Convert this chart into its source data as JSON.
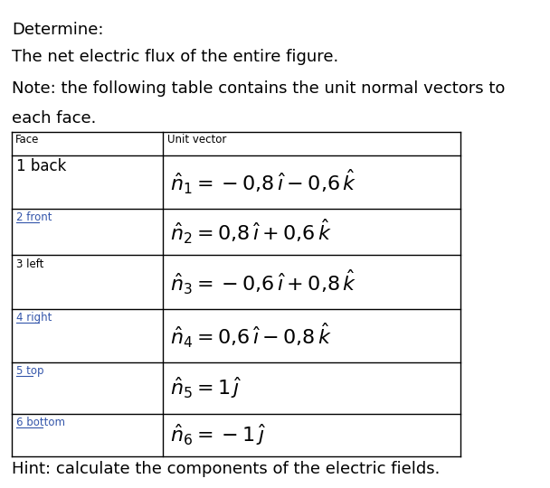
{
  "title_line1": "Determine:",
  "title_line2": "The net electric flux of the entire figure.",
  "title_line3": "Note: the following table contains the unit normal vectors to",
  "title_line4": "each face.",
  "hint": "Hint: calculate the components of the electric fields.",
  "col_header_face": "Face",
  "col_header_vector": "Unit vector",
  "rows": [
    {
      "face_label": "1 back",
      "face_small": false,
      "face_underline": false,
      "vector_latex": "$\\hat{n}_1 = -0{,}8\\,\\hat{\\imath} - 0{,}6\\,\\hat{k}$"
    },
    {
      "face_label": "2 front",
      "face_small": true,
      "face_underline": true,
      "vector_latex": "$\\hat{n}_2 = 0{,}8\\,\\hat{\\imath} + 0{,}6\\,\\hat{k}$"
    },
    {
      "face_label": "3 left",
      "face_small": true,
      "face_underline": false,
      "vector_latex": "$\\hat{n}_3 = -0{,}6\\,\\hat{\\imath} + 0{,}8\\,\\hat{k}$"
    },
    {
      "face_label": "4 right",
      "face_small": true,
      "face_underline": true,
      "vector_latex": "$\\hat{n}_4 = 0{,}6\\,\\hat{\\imath} - 0{,}8\\,\\hat{k}$"
    },
    {
      "face_label": "5 top",
      "face_small": true,
      "face_underline": true,
      "vector_latex": "$\\hat{n}_5 = 1\\,\\hat{\\jmath}$"
    },
    {
      "face_label": "6 bottom",
      "face_small": true,
      "face_underline": true,
      "vector_latex": "$\\hat{n}_6 = -1\\,\\hat{\\jmath}$"
    }
  ],
  "bg_color": "#ffffff",
  "text_color": "#000000",
  "table_line_color": "#000000",
  "underline_color": "#3355aa",
  "fig_width": 6.08,
  "fig_height": 5.4
}
